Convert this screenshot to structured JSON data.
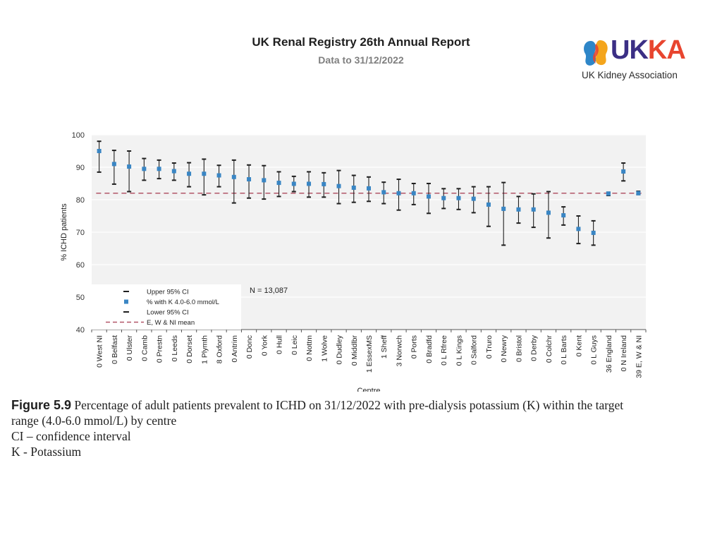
{
  "header": {
    "title": "UK Renal Registry 26th Annual Report",
    "subtitle": "Data to 31/12/2022"
  },
  "logo": {
    "wordmark_uk": "UK",
    "wordmark_ka": "KA",
    "org_name": "UK Kidney Association",
    "colors": [
      "#3b2f85",
      "#e8452f",
      "#f4a51c",
      "#2e86c8"
    ]
  },
  "chart_data": {
    "type": "scatter",
    "title": "",
    "xlabel": "Centre",
    "ylabel": "% ICHD patients",
    "ylim": [
      40,
      100
    ],
    "yticks": [
      40,
      50,
      60,
      70,
      80,
      90,
      100
    ],
    "grid": true,
    "categories": [
      "0 West NI",
      "0 Belfast",
      "0 Ulster",
      "0 Camb",
      "0 Prestn",
      "0 Leeds",
      "0 Dorset",
      "1 Plymth",
      "8 Oxford",
      "0 Antrim",
      "0 Donc",
      "0 York",
      "0 Hull",
      "0 Leic",
      "0 Nottm",
      "1 Wolve",
      "0 Dudley",
      "0 Middlbr",
      "1 EssexMS",
      "1 Sheff",
      "3 Norwch",
      "0 Ports",
      "0 Bradfd",
      "0 L Rfree",
      "0 L Kings",
      "0 Salford",
      "0 Truro",
      "0 Newry",
      "0 Bristol",
      "0 Derby",
      "0 Colchr",
      "0 L Barts",
      "0 Kent",
      "0 L Guys",
      "36 England",
      "0 N Ireland",
      "39 E, W & NI"
    ],
    "series": [
      {
        "name": "Upper 95% CI",
        "values": [
          98.0,
          95.2,
          95.0,
          92.7,
          92.2,
          91.3,
          91.4,
          92.5,
          90.6,
          92.2,
          90.7,
          90.5,
          88.6,
          87.2,
          88.6,
          88.3,
          89.0,
          87.5,
          87.0,
          85.4,
          86.3,
          85.0,
          85.0,
          83.4,
          83.4,
          84.0,
          84.0,
          85.3,
          81.0,
          81.8,
          82.5,
          77.8,
          75.0,
          73.5,
          82.3,
          91.3,
          82.6
        ]
      },
      {
        "name": "% with K 4.0-6.0 mmol/L",
        "values": [
          95.0,
          91.0,
          90.2,
          89.5,
          89.5,
          88.8,
          88.0,
          88.0,
          87.5,
          87.0,
          86.3,
          86.0,
          85.2,
          84.9,
          84.9,
          84.8,
          84.2,
          83.7,
          83.5,
          82.3,
          82.0,
          82.0,
          81.0,
          80.5,
          80.5,
          80.3,
          78.5,
          77.2,
          77.0,
          77.0,
          76.0,
          75.2,
          71.0,
          69.8,
          81.9,
          88.7,
          82.0
        ]
      },
      {
        "name": "Lower 95% CI",
        "values": [
          88.5,
          84.8,
          82.5,
          86.0,
          86.5,
          86.0,
          84.0,
          81.5,
          84.0,
          79.0,
          80.5,
          80.2,
          81.0,
          82.5,
          80.8,
          80.8,
          78.8,
          79.2,
          79.5,
          78.8,
          76.8,
          78.5,
          75.8,
          77.3,
          77.0,
          76.0,
          71.8,
          66.0,
          72.8,
          71.5,
          68.2,
          72.2,
          66.5,
          66.0,
          81.3,
          85.8,
          81.6
        ]
      }
    ],
    "reference_line": {
      "name": "E, W & NI mean",
      "value": 82.0
    },
    "annotation": "N = 13,087",
    "legend": {
      "placement": "bottom-left",
      "entries": [
        "Upper 95% CI",
        "% with K 4.0-6.0 mmol/L",
        "Lower 95% CI",
        "E, W & NI mean"
      ]
    },
    "colors": {
      "point": "#3a86c4",
      "ci": "#1f1f1f",
      "mean_line": "#b25668",
      "plot_bg": "#f2f2f2",
      "grid": "#ffffff"
    }
  },
  "caption": {
    "figure_label": "Figure 5.9",
    "text_line1": " Percentage of adult patients prevalent to ICHD on 31/12/2022 with pre-dialysis potassium (K) within the target",
    "text_line2": "range (4.0-6.0 mmol/L) by centre",
    "note_ci": "CI – confidence interval",
    "note_k": "K - Potassium"
  }
}
